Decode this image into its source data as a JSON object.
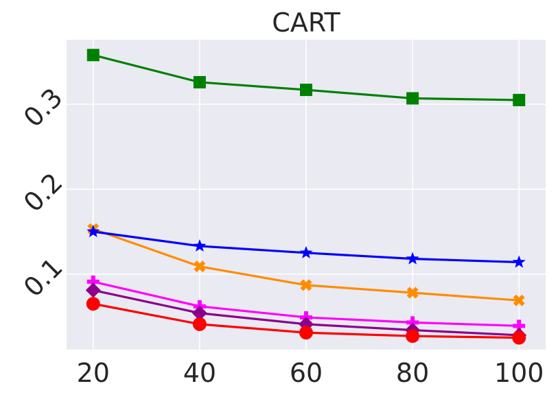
{
  "chart_data": {
    "type": "line",
    "title": "CART",
    "xlabel": "",
    "ylabel": "",
    "x": [
      20,
      40,
      60,
      80,
      100
    ],
    "xlim": [
      15,
      105
    ],
    "ylim": [
      0.011,
      0.376
    ],
    "xticks": [
      "20",
      "40",
      "60",
      "80",
      "100"
    ],
    "yticks": [
      0.1,
      0.2,
      0.3
    ],
    "ytick_labels": [
      "0.1",
      "0.2",
      "0.3"
    ],
    "grid": true,
    "background": "#eaeaf2",
    "grid_color": "#ffffff",
    "series": [
      {
        "color": "#008000",
        "marker": "square",
        "values": [
          0.358,
          0.326,
          0.317,
          0.307,
          0.305
        ]
      },
      {
        "color": "#ff8c00",
        "marker": "x-cross",
        "values": [
          0.153,
          0.109,
          0.087,
          0.078,
          0.069
        ]
      },
      {
        "color": "#0000ff",
        "marker": "star",
        "values": [
          0.15,
          0.133,
          0.125,
          0.118,
          0.114
        ]
      },
      {
        "color": "#ff00ff",
        "marker": "plus",
        "values": [
          0.091,
          0.062,
          0.049,
          0.043,
          0.039
        ]
      },
      {
        "color": "#8b008b",
        "marker": "diamond",
        "values": [
          0.081,
          0.054,
          0.041,
          0.034,
          0.028
        ]
      },
      {
        "color": "#ff0000",
        "marker": "circle",
        "values": [
          0.065,
          0.041,
          0.031,
          0.027,
          0.025
        ]
      }
    ]
  }
}
